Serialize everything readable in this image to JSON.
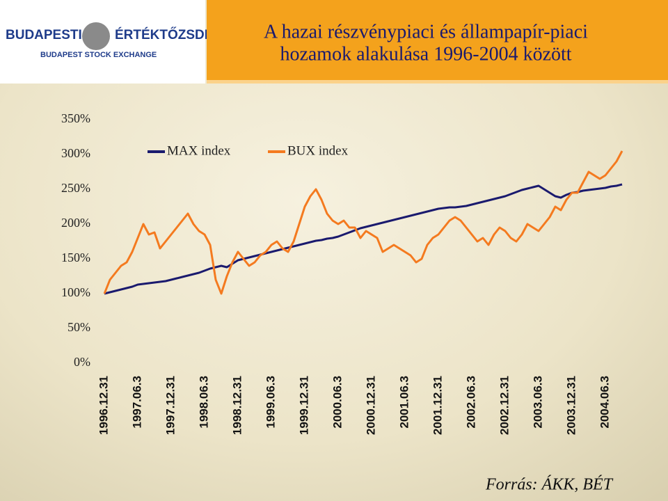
{
  "header": {
    "logo_name": "BUDAPESTI",
    "logo_name2": "ÉRTÉKTŐZSDE",
    "logo_sub": "BUDAPEST STOCK EXCHANGE",
    "title_line1": "A hazai részvénypiaci és állampapír-piaci",
    "title_line2": "hozamok alakulása 1996-2004 között"
  },
  "source": "Forrás: ÁKK, BÉT",
  "chart_data": {
    "type": "line",
    "legend": "upper left",
    "categories": [
      "1996.12.31",
      null,
      null,
      null,
      null,
      null,
      "1997.06.3",
      null,
      null,
      null,
      null,
      null,
      "1997.12.31",
      null,
      null,
      null,
      null,
      null,
      "1998.06.3",
      null,
      null,
      null,
      null,
      null,
      "1998.12.31",
      null,
      null,
      null,
      null,
      null,
      "1999.06.3",
      null,
      null,
      null,
      null,
      null,
      "1999.12.31",
      null,
      null,
      null,
      null,
      null,
      "2000.06.3",
      null,
      null,
      null,
      null,
      null,
      "2000.12.31",
      null,
      null,
      null,
      null,
      null,
      "2001.06.3",
      null,
      null,
      null,
      null,
      null,
      "2001.12.31",
      null,
      null,
      null,
      null,
      null,
      "2002.06.3",
      null,
      null,
      null,
      null,
      null,
      "2002.12.31",
      null,
      null,
      null,
      null,
      null,
      "2003.06.3",
      null,
      null,
      null,
      null,
      null,
      "2003.12.31",
      null,
      null,
      null,
      null,
      null,
      "2004.06.3",
      null,
      null,
      null
    ],
    "series": [
      {
        "name": "MAX index",
        "color": "#1a1a6e",
        "values": [
          100,
          102,
          104,
          106,
          108,
          110,
          113,
          114,
          115,
          116,
          117,
          118,
          120,
          122,
          124,
          126,
          128,
          130,
          133,
          136,
          138,
          140,
          138,
          143,
          148,
          150,
          152,
          154,
          156,
          158,
          160,
          162,
          164,
          166,
          168,
          170,
          172,
          174,
          176,
          177,
          179,
          180,
          182,
          185,
          188,
          191,
          194,
          196,
          198,
          200,
          202,
          204,
          206,
          208,
          210,
          212,
          214,
          216,
          218,
          220,
          222,
          223,
          224,
          224,
          225,
          226,
          228,
          230,
          232,
          234,
          236,
          238,
          240,
          243,
          246,
          249,
          251,
          253,
          255,
          250,
          245,
          240,
          238,
          242,
          245,
          246,
          248,
          249,
          250,
          251,
          252,
          254,
          255,
          257
        ]
      },
      {
        "name": "BUX index",
        "color": "#f47a1f",
        "values": [
          100,
          120,
          130,
          140,
          145,
          160,
          180,
          200,
          185,
          188,
          165,
          175,
          185,
          195,
          205,
          215,
          200,
          190,
          185,
          170,
          120,
          100,
          125,
          145,
          160,
          150,
          140,
          145,
          155,
          160,
          170,
          175,
          165,
          160,
          175,
          200,
          225,
          240,
          250,
          235,
          215,
          205,
          200,
          205,
          195,
          195,
          180,
          190,
          185,
          180,
          160,
          165,
          170,
          165,
          160,
          155,
          145,
          150,
          170,
          180,
          185,
          195,
          205,
          210,
          205,
          195,
          185,
          175,
          180,
          170,
          185,
          195,
          190,
          180,
          175,
          185,
          200,
          195,
          190,
          200,
          210,
          225,
          220,
          235,
          245,
          245,
          260,
          275,
          270,
          265,
          270,
          280,
          290,
          305
        ]
      }
    ],
    "ylim": [
      0,
      350
    ],
    "yticks": [
      {
        "value": 0,
        "label": "0%"
      },
      {
        "value": 50,
        "label": "50%"
      },
      {
        "value": 100,
        "label": "100%"
      },
      {
        "value": 150,
        "label": "150%"
      },
      {
        "value": 200,
        "label": "200%"
      },
      {
        "value": 250,
        "label": "250%"
      },
      {
        "value": 300,
        "label": "300%"
      },
      {
        "value": 350,
        "label": "350%"
      }
    ]
  }
}
